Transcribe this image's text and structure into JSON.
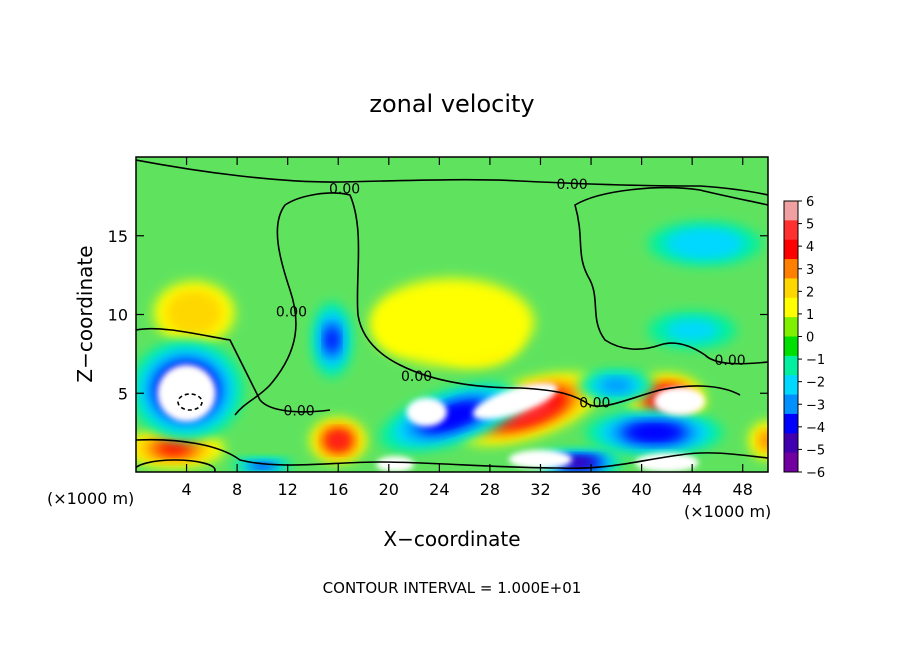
{
  "chart_data": {
    "type": "heatmap",
    "title": "zonal velocity",
    "xlabel": "X−coordinate",
    "ylabel": "Z−coordinate",
    "x_unit_left": "(×1000 m)",
    "x_unit_right": "(×1000 m)",
    "footer": "CONTOUR INTERVAL = 1.000E+01",
    "xlim": [
      0,
      50
    ],
    "ylim": [
      0,
      20
    ],
    "x_ticks": [
      4,
      8,
      12,
      16,
      20,
      24,
      28,
      32,
      36,
      40,
      44,
      48
    ],
    "x_tick_labels": [
      "4",
      "8",
      "12",
      "16",
      "20",
      "24",
      "28",
      "32",
      "36",
      "40",
      "44",
      "48"
    ],
    "y_ticks": [
      5,
      10,
      15
    ],
    "y_tick_labels": [
      "5",
      "10",
      "15"
    ],
    "colorbar": {
      "levels": [
        6,
        5,
        4,
        3,
        2,
        1,
        0,
        -1,
        -2,
        -3,
        -4,
        -5,
        -6
      ],
      "labels": [
        "6",
        "5",
        "4",
        "3",
        "2",
        "1",
        "0",
        "−1",
        "−2",
        "−3",
        "−4",
        "−5",
        "−6"
      ],
      "colors": [
        "#f0a0a0",
        "#ff3030",
        "#ff0000",
        "#ff7f00",
        "#ffd700",
        "#ffff00",
        "#7ff000",
        "#00e000",
        "#00f0a0",
        "#00d8ff",
        "#0090ff",
        "#0000ff",
        "#4000b0",
        "#7000a0"
      ]
    },
    "background_color": "#5fe35f",
    "contour_labels": [
      {
        "text": "0.00",
        "x": 16.5,
        "y": 18.0
      },
      {
        "text": "0.00",
        "x": 34.5,
        "y": 18.3
      },
      {
        "text": "0.00",
        "x": 12.3,
        "y": 10.2
      },
      {
        "text": "0.00",
        "x": 22.2,
        "y": 6.1
      },
      {
        "text": "0.00",
        "x": 36.3,
        "y": 4.4
      },
      {
        "text": "0.00",
        "x": 12.9,
        "y": 3.9
      },
      {
        "text": "0.00",
        "x": 47.0,
        "y": 7.1
      }
    ],
    "features": [
      {
        "kind": "positive",
        "value": 2.5,
        "x": 4.6,
        "y": 10.1,
        "rx": 3.2,
        "ry": 2.0
      },
      {
        "kind": "positive",
        "value": 2.2,
        "x": 27,
        "y": 8.5,
        "rx": 3.5,
        "ry": 1.8
      },
      {
        "kind": "positive",
        "value": 1.5,
        "x": 21,
        "y": 9.2,
        "rx": 2.0,
        "ry": 1.6
      },
      {
        "kind": "positive",
        "value": 1.2,
        "x": 25,
        "y": 9.5,
        "rx": 6.5,
        "ry": 2.8
      },
      {
        "kind": "positive",
        "value": 5.5,
        "x": 31,
        "y": 4.0,
        "rx": 6.0,
        "ry": 1.8,
        "rot": 18
      },
      {
        "kind": "positive",
        "value": 5.0,
        "x": 16,
        "y": 2.0,
        "rx": 2.2,
        "ry": 1.4
      },
      {
        "kind": "positive",
        "value": 5.5,
        "x": 42,
        "y": 4.6,
        "rx": 3.0,
        "ry": 1.6
      },
      {
        "kind": "positive",
        "value": 4.0,
        "x": 3.0,
        "y": 1.5,
        "rx": 4.0,
        "ry": 1.2
      },
      {
        "kind": "positive",
        "value": 3.0,
        "x": 50,
        "y": 2.0,
        "rx": 1.5,
        "ry": 1.2
      },
      {
        "kind": "negative",
        "value": -5.5,
        "x": 4.0,
        "y": 5.2,
        "rx": 4.5,
        "ry": 3.2
      },
      {
        "kind": "negative",
        "value": -4.0,
        "x": 15.5,
        "y": 8.4,
        "rx": 1.6,
        "ry": 2.4
      },
      {
        "kind": "negative",
        "value": -4.5,
        "x": 25,
        "y": 3.5,
        "rx": 6.0,
        "ry": 1.7,
        "rot": 18
      },
      {
        "kind": "negative",
        "value": -4.5,
        "x": 41,
        "y": 2.5,
        "rx": 5.5,
        "ry": 1.4
      },
      {
        "kind": "negative",
        "value": -3.0,
        "x": 38,
        "y": 5.5,
        "rx": 3.0,
        "ry": 1.0
      },
      {
        "kind": "negative",
        "value": -2.5,
        "x": 45,
        "y": 14.5,
        "rx": 4.5,
        "ry": 1.4
      },
      {
        "kind": "negative",
        "value": -2.0,
        "x": 44,
        "y": 9.0,
        "rx": 3.5,
        "ry": 1.2
      },
      {
        "kind": "negative",
        "value": -5.5,
        "x": 35,
        "y": 0.6,
        "rx": 3.5,
        "ry": 0.8
      },
      {
        "kind": "negative",
        "value": -4.0,
        "x": 10,
        "y": 0.4,
        "rx": 2.5,
        "ry": 0.5
      },
      {
        "kind": "below_min",
        "x": 4.0,
        "y": 5.0,
        "rx": 2.3,
        "ry": 1.8
      },
      {
        "kind": "below_min",
        "x": 23,
        "y": 3.8,
        "rx": 1.6,
        "ry": 0.9
      },
      {
        "kind": "below_min",
        "x": 32,
        "y": 0.8,
        "rx": 2.5,
        "ry": 0.6
      },
      {
        "kind": "above_max",
        "x": 43,
        "y": 4.5,
        "rx": 2.0,
        "ry": 0.9
      },
      {
        "kind": "above_max",
        "x": 30,
        "y": 4.5,
        "rx": 3.5,
        "ry": 0.8,
        "rot": 18
      },
      {
        "kind": "above_max",
        "x": 20.5,
        "y": 0.5,
        "rx": 1.5,
        "ry": 0.5
      },
      {
        "kind": "above_max",
        "x": 42,
        "y": 0.6,
        "rx": 2.5,
        "ry": 0.6
      }
    ]
  }
}
